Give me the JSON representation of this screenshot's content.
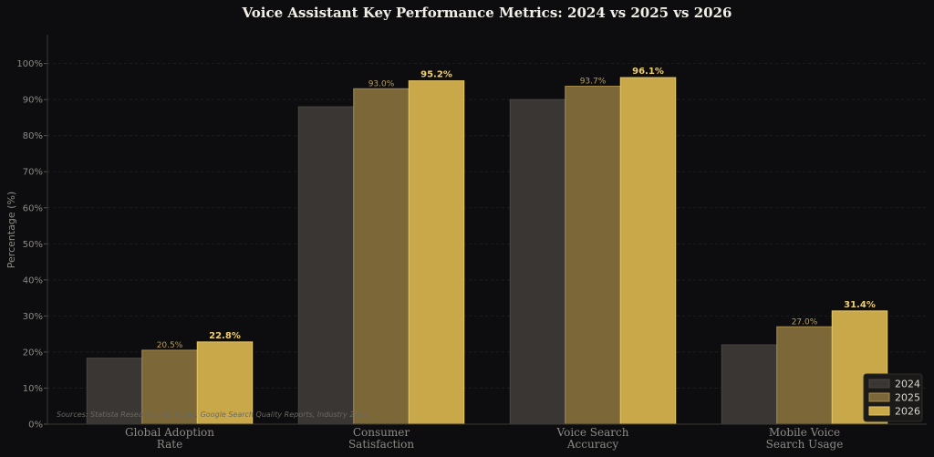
{
  "chart_data": {
    "type": "bar",
    "title": "Voice Assistant Key Performance Metrics: 2024 vs 2025 vs 2026",
    "ylabel": "Percentage (%)",
    "xlabel": "",
    "ylim": [
      0,
      108
    ],
    "yticks": [
      0,
      10,
      20,
      30,
      40,
      50,
      60,
      70,
      80,
      90,
      100
    ],
    "ytick_suffix": "%",
    "grid": true,
    "legend_position": "bottom-right",
    "categories": [
      [
        "Global Adoption",
        "Rate"
      ],
      [
        "Consumer",
        "Satisfaction"
      ],
      [
        "Voice Search",
        "Accuracy"
      ],
      [
        "Mobile Voice",
        "Search Usage"
      ]
    ],
    "series": [
      {
        "name": "2024",
        "color": "#3a3633",
        "edge": "#4a4641",
        "values": [
          18.3,
          88.0,
          90.0,
          22.0
        ],
        "label": "none"
      },
      {
        "name": "2025",
        "color": "#7b6737",
        "edge": "#a88c48",
        "values": [
          20.5,
          93.0,
          93.7,
          27.0
        ],
        "label": "small"
      },
      {
        "name": "2026",
        "color": "#c9a84a",
        "edge": "#e3c46a",
        "values": [
          22.8,
          95.2,
          96.1,
          31.4
        ],
        "label": "big"
      }
    ],
    "data_labels": {
      "2025": [
        "20.5%",
        "93.0%",
        "93.7%",
        "27.0%"
      ],
      "2026": [
        "22.8%",
        "95.2%",
        "96.1%",
        "31.4%"
      ]
    },
    "source_note": "Sources: Statista Research, J.D. Power, Google Search Quality Reports, Industry 2026"
  }
}
